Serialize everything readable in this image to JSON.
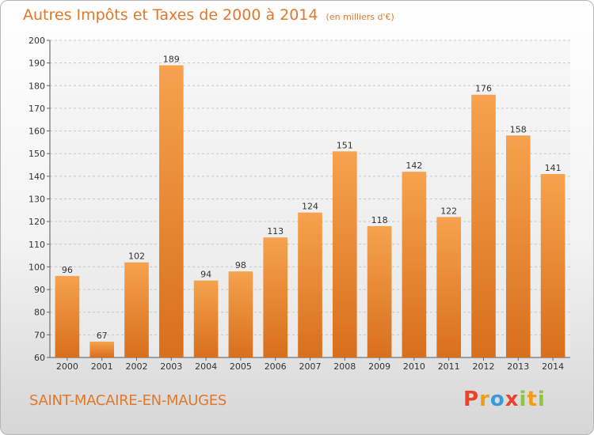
{
  "title": "Autres Impôts et Taxes de 2000 à 2014",
  "subtitle": "(en milliers d'€)",
  "location": "SAINT-MACAIRE-EN-MAUGES",
  "logo": {
    "letters": [
      "P",
      "r",
      "o",
      "x",
      "i",
      "t",
      "i"
    ],
    "colors": [
      "#e8432d",
      "#f39c12",
      "#3a9ad9",
      "#e8432d",
      "#8dc63f",
      "#f39c12",
      "#8dc63f"
    ]
  },
  "colors": {
    "bar_top": "#f6a24e",
    "bar_bottom": "#d86f1c",
    "accent": "#e0782b"
  },
  "chart_data": {
    "type": "bar",
    "categories": [
      "2000",
      "2001",
      "2002",
      "2003",
      "2004",
      "2005",
      "2006",
      "2007",
      "2008",
      "2009",
      "2010",
      "2011",
      "2012",
      "2013",
      "2014"
    ],
    "values": [
      96,
      67,
      102,
      189,
      94,
      98,
      113,
      124,
      151,
      118,
      142,
      122,
      176,
      158,
      141
    ],
    "ylim": [
      60,
      200
    ],
    "yticks": [
      60,
      70,
      80,
      90,
      100,
      110,
      120,
      130,
      140,
      150,
      160,
      170,
      180,
      190,
      200
    ],
    "grid": true
  }
}
